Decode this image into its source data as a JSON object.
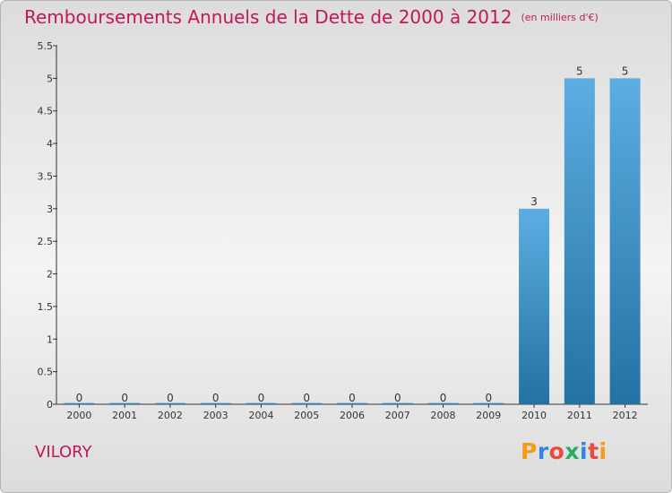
{
  "header": {
    "title": "Remboursements Annuels de la Dette de 2000 à 2012",
    "unit": "(en milliers d'€)"
  },
  "footer": {
    "city": "VILORY",
    "brand": "Proxiti",
    "brand_letter_colors": [
      "#f39c12",
      "#2e86de",
      "#e74c3c",
      "#27ae60",
      "#2e86de",
      "#e74c3c",
      "#f39c12"
    ]
  },
  "chart_data": {
    "type": "bar",
    "title": "Remboursements Annuels de la Dette de 2000 à 2012",
    "xlabel": "",
    "ylabel": "(en milliers d'€)",
    "categories": [
      "2000",
      "2001",
      "2002",
      "2003",
      "2004",
      "2005",
      "2006",
      "2007",
      "2008",
      "2009",
      "2010",
      "2011",
      "2012"
    ],
    "values": [
      0,
      0,
      0,
      0,
      0,
      0,
      0,
      0,
      0,
      0,
      3,
      5,
      5
    ],
    "ylim": [
      0,
      5.5
    ],
    "yticks": [
      "0",
      "0.5",
      "1",
      "1.5",
      "2",
      "2.5",
      "3",
      "3.5",
      "4",
      "4.5",
      "5",
      "5.5"
    ],
    "grid": false,
    "bar_color_top": "#5dade2",
    "bar_color_bottom": "#2471a3"
  }
}
